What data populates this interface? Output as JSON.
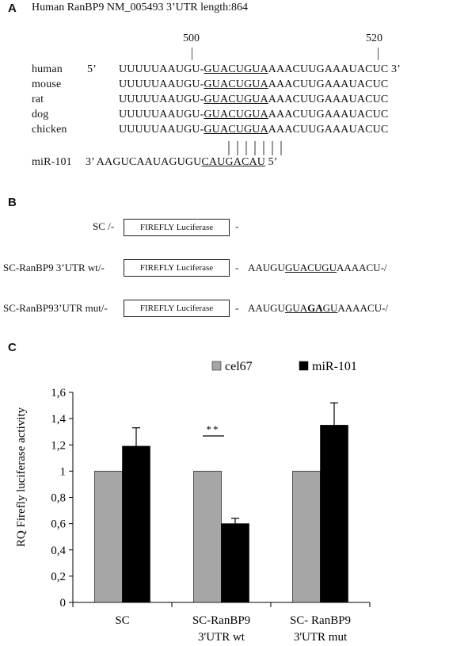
{
  "panel_a": {
    "letter": "A",
    "header": "Human RanBP9 NM_005493 3’UTR length:864",
    "pos_500": "500",
    "pos_520": "520",
    "rows": [
      {
        "species": "human",
        "prime5": "5’",
        "pre": "UUUUUAAUGU-",
        "site": "GUACUGUA",
        "post": "AAACUUGAAAUACUC",
        "prime3": " 3’"
      },
      {
        "species": "mouse",
        "prime5": "",
        "pre": "UUUUUAAUGU-",
        "site": "GUACUGUA",
        "post": "AAACUUGAAAUACUC",
        "prime3": ""
      },
      {
        "species": "rat",
        "prime5": "",
        "pre": "UUUUUAAUGU-",
        "site": "GUACUGUA",
        "post": "AAACUUGAAAUACUC",
        "prime3": ""
      },
      {
        "species": "dog",
        "prime5": "",
        "pre": "UUUUUAAUGU-",
        "site": "GUACUGUA",
        "post": "AAACUUGAAAUACUC",
        "prime3": ""
      },
      {
        "species": "chicken",
        "prime5": "",
        "pre": "UUUUUAAUGU-",
        "site": "GUACUGUA",
        "post": "AAACUUGAAAUACUC",
        "prime3": ""
      }
    ],
    "mirna_label": "miR-101",
    "mirna_pre": "3’ AAGUCAAUAGUGU",
    "mirna_site": "CAUGACAU",
    "mirna_post": " 5’"
  },
  "panel_b": {
    "letter": "B",
    "box_label": "FIREFLY Luciferase",
    "constructs": [
      {
        "name": "SC /-",
        "tail": "-",
        "seq_pre": "",
        "seq_site": "",
        "seq_site_bold": "",
        "seq_site_post": "",
        "seq_post": ""
      },
      {
        "name": "SC-RanBP9 3’UTR wt/-",
        "tail": "-",
        "seq_pre": "AAUGU",
        "seq_site": "GUACUGU",
        "seq_site_bold": "",
        "seq_site_post": "",
        "seq_post": "AAAACU-/"
      },
      {
        "name": "SC-RanBP93’UTR mut/-",
        "tail": "-",
        "seq_pre": "AAUGU",
        "seq_site": "GUA",
        "seq_site_bold": "GA",
        "seq_site_post": "GU",
        "seq_post": "AAAACU-/"
      }
    ]
  },
  "panel_c": {
    "letter": "C",
    "significance": "**"
  },
  "chart_data": {
    "type": "bar",
    "ylabel": "RQ Firefly luciferase activity",
    "ylim": [
      0,
      1.6
    ],
    "yticks": [
      "0",
      "0,2",
      "0,4",
      "0,6",
      "0,8",
      "1",
      "1,2",
      "1,4",
      "1,6"
    ],
    "categories": [
      [
        "SC"
      ],
      [
        "SC-RanBP9",
        "3'UTR wt"
      ],
      [
        "SC- RanBP9",
        "3'UTR mut"
      ]
    ],
    "series": [
      {
        "name": "cel67",
        "color": "#a6a6a6",
        "values": [
          1.0,
          1.0,
          1.0
        ],
        "errors": [
          0,
          0,
          0
        ]
      },
      {
        "name": "miR-101",
        "color": "#000000",
        "values": [
          1.19,
          0.6,
          1.35
        ],
        "errors": [
          0.14,
          0.04,
          0.17
        ]
      }
    ],
    "legend_position": "top"
  }
}
